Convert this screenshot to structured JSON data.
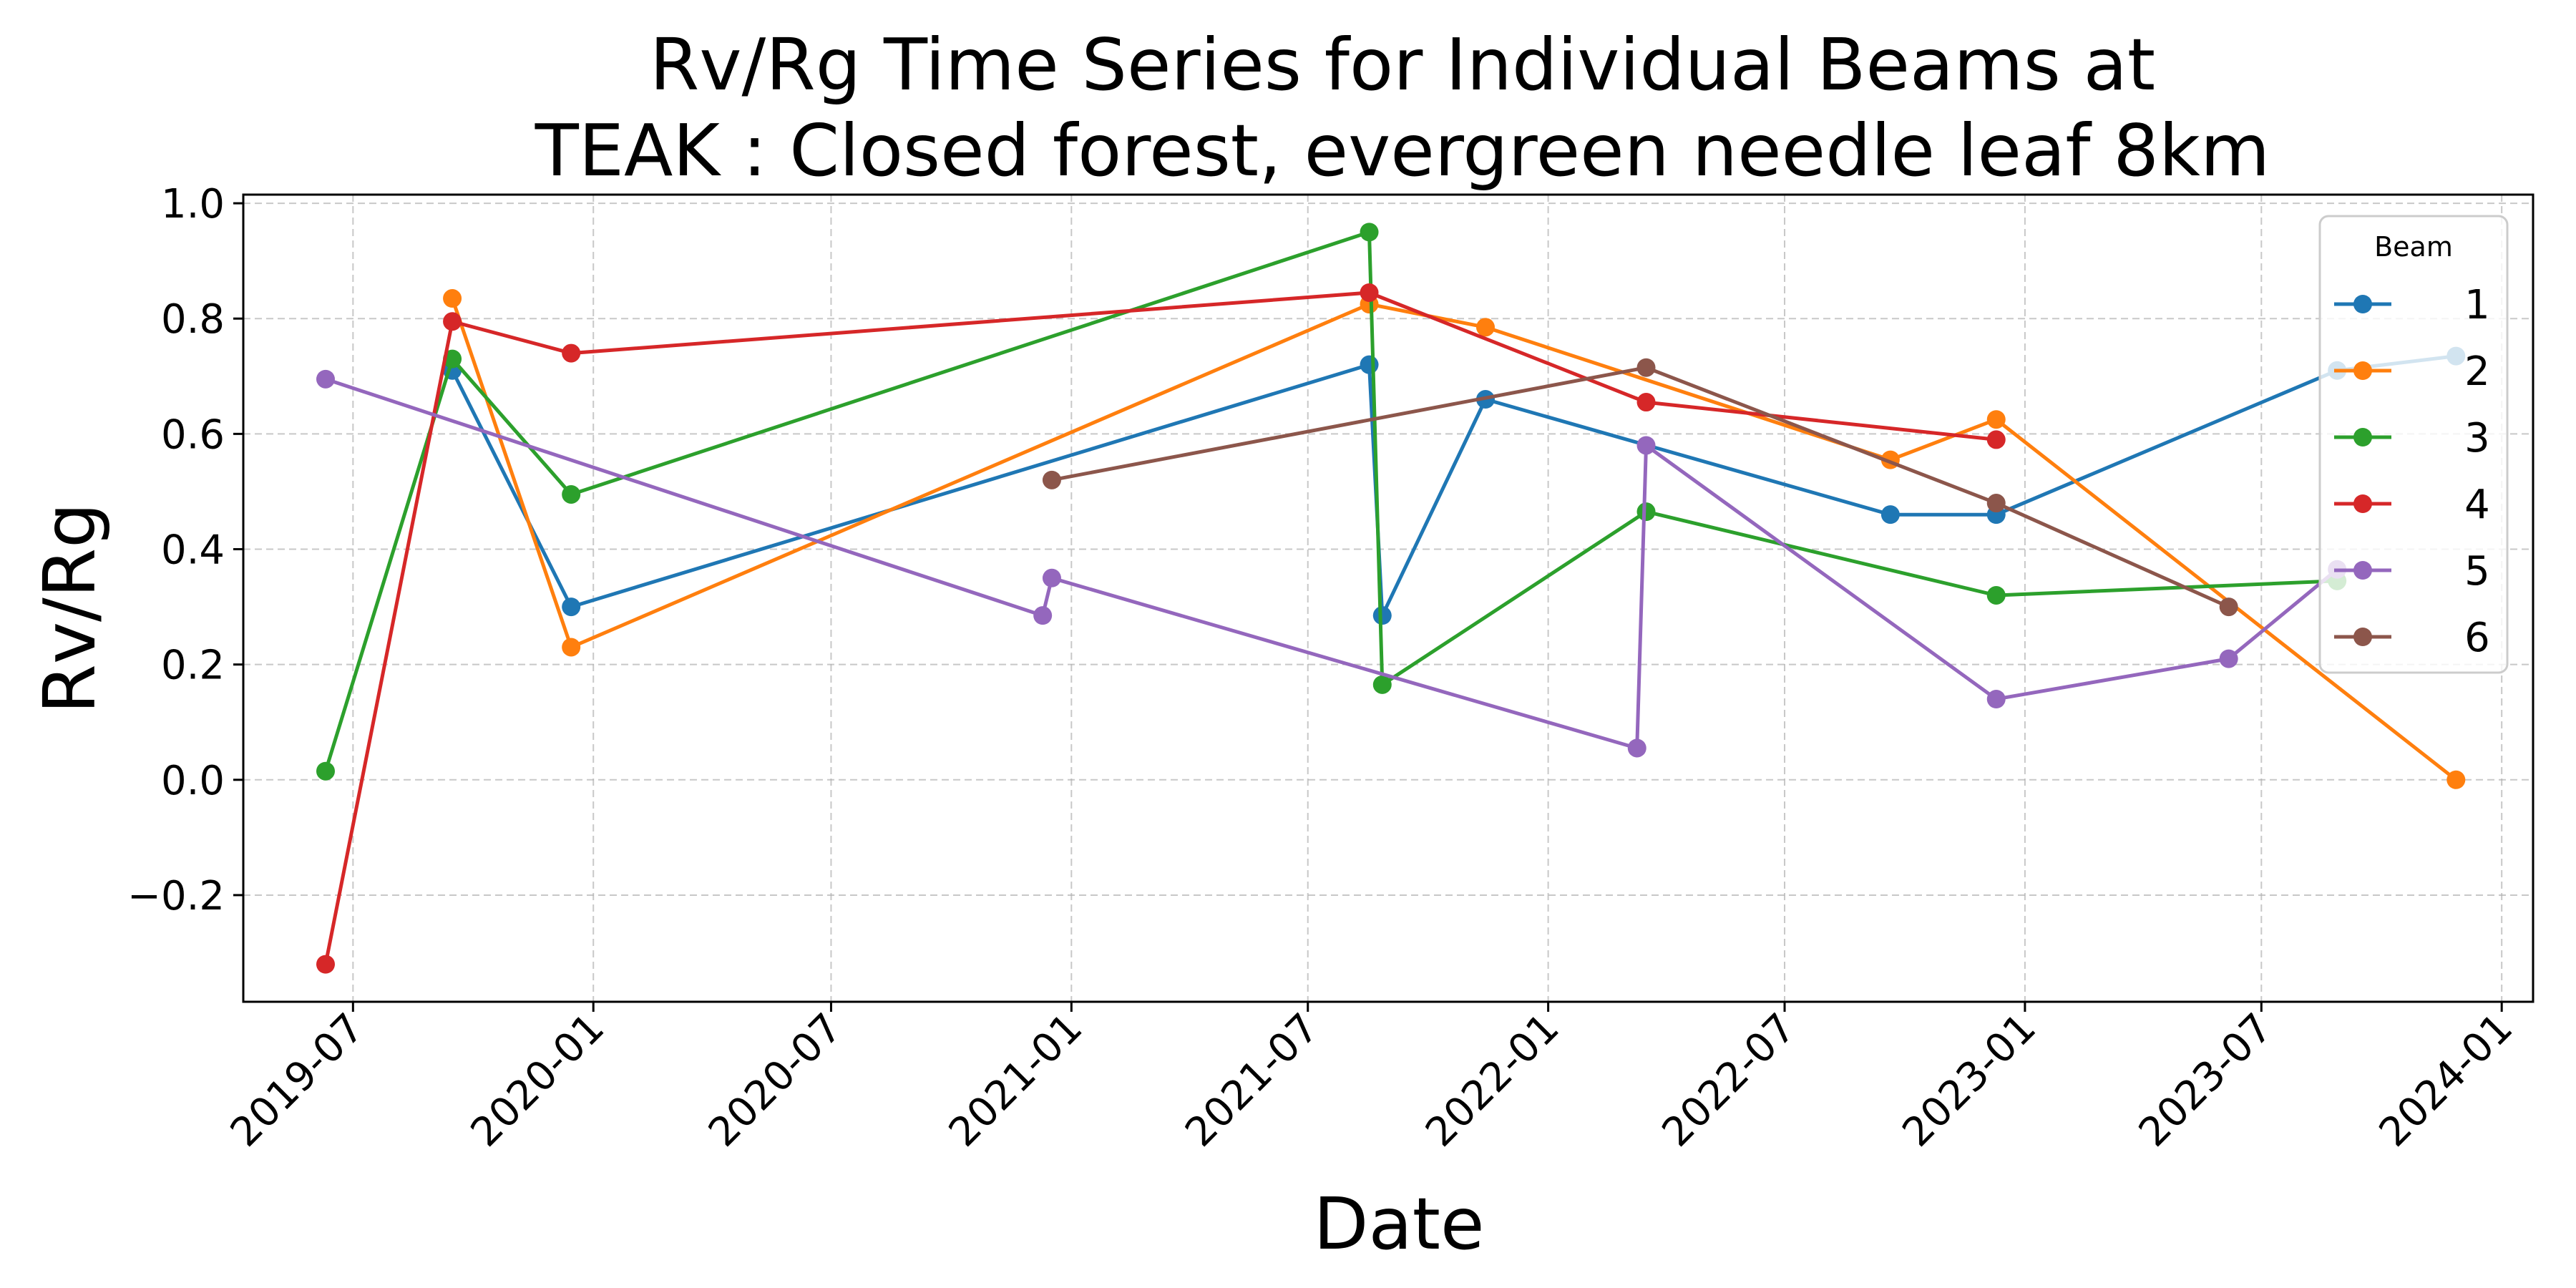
{
  "chart_data": {
    "type": "line",
    "title_line1": "Rv/Rg Time Series for Individual Beams at",
    "title_line2": "TEAK : Closed forest, evergreen needle leaf 8km",
    "xlabel": "Date",
    "ylabel": "Rv/Rg",
    "x_scale": "date",
    "xlim": [
      "2019-04-08",
      "2024-01-25"
    ],
    "ylim": [
      -0.385,
      1.015
    ],
    "x_ticks": [
      "2019-07",
      "2020-01",
      "2020-07",
      "2021-01",
      "2021-07",
      "2022-01",
      "2022-07",
      "2023-01",
      "2023-07",
      "2024-01"
    ],
    "y_ticks": [
      "1.0",
      "0.8",
      "0.6",
      "0.4",
      "0.2",
      "0.0",
      "−0.2"
    ],
    "grid": true,
    "legend": {
      "title": "Beam",
      "placement": "upper right"
    },
    "series": [
      {
        "name": "1",
        "color": "#1f77b4",
        "points": [
          {
            "x": "2019-09-15",
            "y": 0.71
          },
          {
            "x": "2019-12-15",
            "y": 0.3
          },
          {
            "x": "2021-08-17",
            "y": 0.72
          },
          {
            "x": "2021-08-27",
            "y": 0.285
          },
          {
            "x": "2021-11-14",
            "y": 0.66
          },
          {
            "x": "2022-09-20",
            "y": 0.46
          },
          {
            "x": "2022-12-10",
            "y": 0.46
          },
          {
            "x": "2023-08-28",
            "y": 0.71
          },
          {
            "x": "2023-11-27",
            "y": 0.735
          }
        ]
      },
      {
        "name": "2",
        "color": "#ff7f0e",
        "points": [
          {
            "x": "2019-09-15",
            "y": 0.835
          },
          {
            "x": "2019-12-15",
            "y": 0.23
          },
          {
            "x": "2021-08-17",
            "y": 0.825
          },
          {
            "x": "2021-11-14",
            "y": 0.785
          },
          {
            "x": "2022-09-20",
            "y": 0.555
          },
          {
            "x": "2022-12-10",
            "y": 0.625
          },
          {
            "x": "2023-11-27",
            "y": 0.0
          }
        ]
      },
      {
        "name": "3",
        "color": "#2ca02c",
        "points": [
          {
            "x": "2019-06-10",
            "y": 0.015
          },
          {
            "x": "2019-09-15",
            "y": 0.73
          },
          {
            "x": "2019-12-15",
            "y": 0.495
          },
          {
            "x": "2021-08-17",
            "y": 0.95
          },
          {
            "x": "2021-08-27",
            "y": 0.165
          },
          {
            "x": "2022-03-17",
            "y": 0.465
          },
          {
            "x": "2022-12-10",
            "y": 0.32
          },
          {
            "x": "2023-08-28",
            "y": 0.345
          }
        ]
      },
      {
        "name": "4",
        "color": "#d62728",
        "points": [
          {
            "x": "2019-06-10",
            "y": -0.32
          },
          {
            "x": "2019-09-15",
            "y": 0.795
          },
          {
            "x": "2019-12-15",
            "y": 0.74
          },
          {
            "x": "2021-08-17",
            "y": 0.845
          },
          {
            "x": "2022-03-17",
            "y": 0.655
          },
          {
            "x": "2022-12-10",
            "y": 0.59
          }
        ]
      },
      {
        "name": "5",
        "color": "#9467bd",
        "points": [
          {
            "x": "2019-06-10",
            "y": 0.695
          },
          {
            "x": "2020-12-10",
            "y": 0.285
          },
          {
            "x": "2020-12-17",
            "y": 0.35
          },
          {
            "x": "2022-03-10",
            "y": 0.055
          },
          {
            "x": "2022-03-17",
            "y": 0.58
          },
          {
            "x": "2022-12-10",
            "y": 0.14
          },
          {
            "x": "2023-06-06",
            "y": 0.21
          },
          {
            "x": "2023-08-28",
            "y": 0.365
          }
        ]
      },
      {
        "name": "6",
        "color": "#8c564b",
        "points": [
          {
            "x": "2020-12-17",
            "y": 0.52
          },
          {
            "x": "2022-03-17",
            "y": 0.715
          },
          {
            "x": "2022-12-10",
            "y": 0.48
          },
          {
            "x": "2023-06-06",
            "y": 0.3
          }
        ]
      }
    ]
  }
}
